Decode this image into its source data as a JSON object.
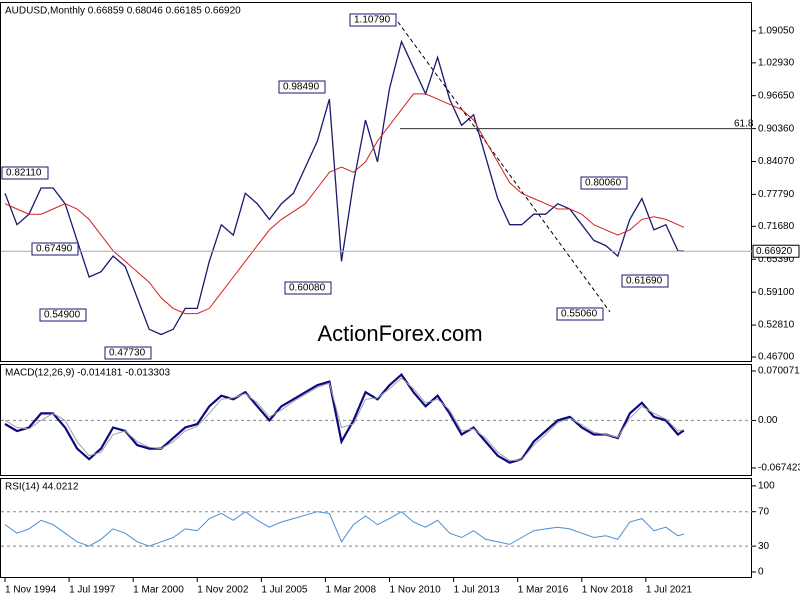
{
  "chart_data": {
    "type": "line",
    "title": "AUDUSD,Monthly  0.66859 0.68046 0.66185 0.66920",
    "watermark": "ActionForex.com",
    "x": [
      "1994-11",
      "1995-05",
      "1995-11",
      "1996-05",
      "1996-11",
      "1997-05",
      "1997-11",
      "1998-05",
      "1998-11",
      "1999-05",
      "1999-11",
      "2000-05",
      "2000-11",
      "2001-05",
      "2001-11",
      "2002-05",
      "2002-11",
      "2003-05",
      "2003-11",
      "2004-05",
      "2004-11",
      "2005-05",
      "2005-11",
      "2006-05",
      "2006-11",
      "2007-05",
      "2007-11",
      "2008-05",
      "2008-11",
      "2009-05",
      "2009-11",
      "2010-05",
      "2010-11",
      "2011-05",
      "2011-11",
      "2012-05",
      "2012-11",
      "2013-05",
      "2013-11",
      "2014-05",
      "2014-11",
      "2015-05",
      "2015-11",
      "2016-05",
      "2016-11",
      "2017-05",
      "2017-11",
      "2018-05",
      "2018-11",
      "2019-05",
      "2019-11",
      "2020-05",
      "2020-11",
      "2021-05",
      "2021-11",
      "2022-05",
      "2022-11",
      "2023-02"
    ],
    "xlim": [
      "1994-09",
      "2025-12"
    ],
    "xticks": [
      {
        "value": "1994-11",
        "label": "1 Nov 1994"
      },
      {
        "value": "1997-07",
        "label": "1 Jul 1997"
      },
      {
        "value": "2000-03",
        "label": "1 Mar 2000"
      },
      {
        "value": "2002-11",
        "label": "1 Nov 2002"
      },
      {
        "value": "2005-07",
        "label": "1 Jul 2005"
      },
      {
        "value": "2008-03",
        "label": "1 Mar 2008"
      },
      {
        "value": "2010-11",
        "label": "1 Nov 2010"
      },
      {
        "value": "2013-07",
        "label": "1 Jul 2013"
      },
      {
        "value": "2016-03",
        "label": "1 Mar 2016"
      },
      {
        "value": "2018-11",
        "label": "1 Nov 2018"
      },
      {
        "value": "2021-07",
        "label": "1 Jul 2021"
      }
    ],
    "series": [
      {
        "name": "AUDUSD",
        "color": "#1a1a6e",
        "values": [
          0.78,
          0.72,
          0.74,
          0.79,
          0.79,
          0.76,
          0.69,
          0.62,
          0.63,
          0.66,
          0.64,
          0.58,
          0.52,
          0.51,
          0.52,
          0.56,
          0.56,
          0.65,
          0.72,
          0.7,
          0.78,
          0.76,
          0.73,
          0.76,
          0.78,
          0.83,
          0.88,
          0.96,
          0.65,
          0.8,
          0.92,
          0.84,
          0.98,
          1.07,
          1.02,
          0.97,
          1.04,
          0.96,
          0.91,
          0.93,
          0.85,
          0.77,
          0.72,
          0.72,
          0.74,
          0.74,
          0.76,
          0.75,
          0.72,
          0.69,
          0.68,
          0.66,
          0.73,
          0.77,
          0.71,
          0.72,
          0.67,
          0.6692
        ]
      },
      {
        "name": "MA",
        "color": "#d42020",
        "values": [
          0.76,
          0.75,
          0.74,
          0.74,
          0.75,
          0.76,
          0.75,
          0.73,
          0.7,
          0.67,
          0.65,
          0.63,
          0.61,
          0.58,
          0.56,
          0.55,
          0.55,
          0.56,
          0.59,
          0.62,
          0.65,
          0.68,
          0.71,
          0.73,
          0.745,
          0.76,
          0.79,
          0.82,
          0.83,
          0.82,
          0.84,
          0.88,
          0.91,
          0.94,
          0.97,
          0.97,
          0.96,
          0.95,
          0.94,
          0.92,
          0.88,
          0.84,
          0.8,
          0.78,
          0.77,
          0.76,
          0.75,
          0.75,
          0.74,
          0.72,
          0.71,
          0.7,
          0.71,
          0.73,
          0.735,
          0.73,
          0.72,
          0.715
        ]
      }
    ],
    "ylim": [
      0.4594,
      1.1437
    ],
    "yticks": [
      {
        "value": 1.0905,
        "label": "1.09050"
      },
      {
        "value": 1.0293,
        "label": "1.02930"
      },
      {
        "value": 0.9665,
        "label": "0.96650"
      },
      {
        "value": 0.9036,
        "label": "0.90360"
      },
      {
        "value": 0.8407,
        "label": "0.84070"
      },
      {
        "value": 0.7779,
        "label": "0.77790"
      },
      {
        "value": 0.7168,
        "label": "0.71680"
      },
      {
        "value": 0.6539,
        "label": "0.65390"
      },
      {
        "value": 0.591,
        "label": "0.59100"
      },
      {
        "value": 0.5281,
        "label": "0.52810"
      },
      {
        "value": 0.467,
        "label": "0.46700"
      }
    ],
    "fib_label": "61.8",
    "current_price_label": "0.66920",
    "annotations": [
      "1.10790",
      "0.98490",
      "0.82110",
      "0.67490",
      "0.54900",
      "0.47730",
      "0.60080",
      "0.55060",
      "0.80060",
      "0.61690"
    ],
    "macd": {
      "title": "MACD(12,26,9) -0.014181 -0.013303",
      "ylim": [
        -0.0788,
        0.0786
      ],
      "yticks": [
        {
          "value": 0.070071,
          "label": "0.070071"
        },
        {
          "value": 0,
          "label": "0.00"
        },
        {
          "value": -0.067423,
          "label": "-0.067423"
        }
      ],
      "series": [
        {
          "name": "MACD",
          "color": "#0a0a80",
          "values": [
            -0.005,
            -0.015,
            -0.01,
            0.01,
            0.01,
            -0.01,
            -0.04,
            -0.055,
            -0.04,
            -0.01,
            -0.015,
            -0.035,
            -0.04,
            -0.04,
            -0.025,
            -0.01,
            -0.005,
            0.02,
            0.035,
            0.03,
            0.04,
            0.02,
            0,
            0.02,
            0.03,
            0.04,
            0.05,
            0.055,
            -0.03,
            0,
            0.04,
            0.03,
            0.05,
            0.065,
            0.04,
            0.02,
            0.035,
            0.01,
            -0.02,
            -0.01,
            -0.03,
            -0.05,
            -0.06,
            -0.055,
            -0.03,
            -0.015,
            0,
            0.005,
            -0.01,
            -0.02,
            -0.02,
            -0.025,
            0.01,
            0.025,
            0.005,
            0,
            -0.02,
            -0.014181
          ]
        },
        {
          "name": "Signal",
          "color": "#a0a0a0",
          "values": [
            0,
            -0.01,
            -0.012,
            0,
            0.01,
            0,
            -0.03,
            -0.05,
            -0.045,
            -0.02,
            -0.015,
            -0.03,
            -0.038,
            -0.04,
            -0.03,
            -0.015,
            -0.008,
            0.01,
            0.03,
            0.032,
            0.038,
            0.025,
            0.005,
            0.015,
            0.027,
            0.037,
            0.047,
            0.053,
            -0.01,
            -0.005,
            0.03,
            0.032,
            0.045,
            0.06,
            0.045,
            0.025,
            0.03,
            0.015,
            -0.015,
            -0.012,
            -0.025,
            -0.045,
            -0.057,
            -0.056,
            -0.035,
            -0.02,
            -0.003,
            0.003,
            -0.006,
            -0.017,
            -0.02,
            -0.024,
            0.003,
            0.02,
            0.01,
            0.002,
            -0.015,
            -0.013303
          ]
        }
      ]
    },
    "rsi": {
      "title": "RSI(14) 44.0212",
      "ylim": [
        -7,
        108
      ],
      "yticks": [
        100,
        70,
        30,
        0
      ],
      "series": [
        {
          "name": "RSI",
          "color": "#4a8fd8",
          "values": [
            55,
            45,
            50,
            60,
            55,
            45,
            35,
            30,
            38,
            50,
            45,
            35,
            30,
            35,
            40,
            50,
            48,
            62,
            68,
            60,
            70,
            60,
            52,
            58,
            62,
            66,
            70,
            68,
            35,
            55,
            65,
            55,
            62,
            70,
            58,
            52,
            60,
            45,
            40,
            48,
            38,
            35,
            32,
            40,
            48,
            50,
            52,
            50,
            45,
            40,
            42,
            38,
            58,
            62,
            48,
            52,
            42,
            44.0212
          ]
        }
      ]
    }
  }
}
